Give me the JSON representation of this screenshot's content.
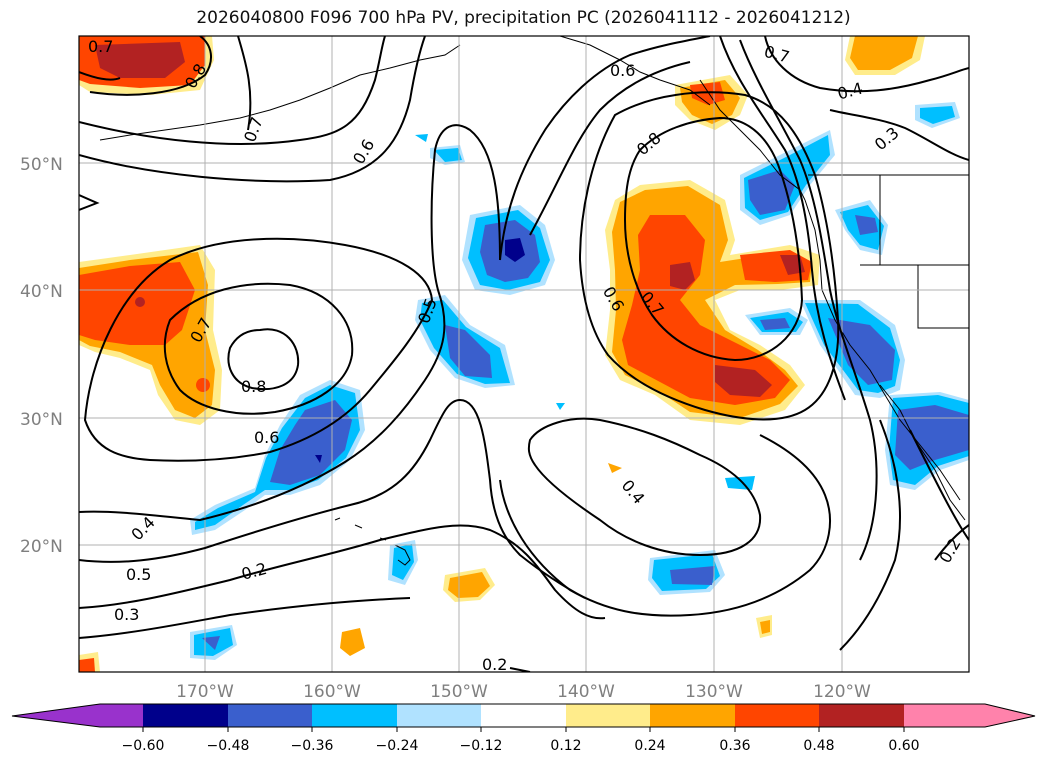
{
  "title": "2026040800 F096 700 hPa PV, precipitation PC (2026041112 - 2026041212)",
  "lat_labels": [
    "50°N",
    "40°N",
    "30°N",
    "20°N"
  ],
  "lon_labels": [
    "170°W",
    "160°W",
    "150°W",
    "140°W",
    "130°W",
    "120°W"
  ],
  "contour_labels": [
    "0.7",
    "0.8",
    "0.7",
    "0.6",
    "0.6",
    "0.8",
    "0.7",
    "0.4",
    "0.3",
    "0.5",
    "0.7",
    "0.8",
    "0.6",
    "0.6",
    "0.7",
    "0.4",
    "0.5",
    "0.3",
    "0.2",
    "0.2",
    "0.2"
  ],
  "colorbar": {
    "tick_labels": [
      "−0.60",
      "−0.48",
      "−0.36",
      "−0.24",
      "−0.12",
      "0.12",
      "0.24",
      "0.36",
      "0.48",
      "0.60"
    ],
    "colors": [
      "#9932cc",
      "#00008b",
      "#3a5fcd",
      "#00bfff",
      "#b0e2ff",
      "#ffffff",
      "#ffec8b",
      "#ffa500",
      "#ff4500",
      "#b22222",
      "#ff82ab"
    ]
  },
  "fill_colors": {
    "pos1": "#ffec8b",
    "pos2": "#ffa500",
    "pos3": "#ff4500",
    "pos4": "#b22222",
    "neg1": "#b0e2ff",
    "neg2": "#00bfff",
    "neg3": "#3a5fcd",
    "neg4": "#00008b"
  }
}
